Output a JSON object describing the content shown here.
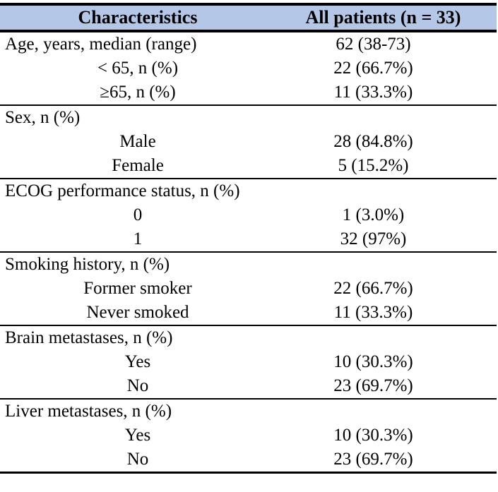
{
  "page": {
    "background_color": "#ffffff",
    "text_color": "#000000",
    "rule_color": "#000000"
  },
  "table": {
    "header_bg": "#b4c7e7",
    "header": {
      "characteristics": "Characteristics",
      "all_patients": "All patients (n = 33)"
    },
    "sections": [
      {
        "rows": [
          {
            "label": "Age, years, median (range)",
            "value": "62 (38-73)",
            "indent": false
          },
          {
            "label": "< 65, n (%)",
            "value": "22 (66.7%)",
            "indent": true
          },
          {
            "label": "≥65, n (%)",
            "value": "11 (33.3%)",
            "indent": true
          }
        ]
      },
      {
        "rows": [
          {
            "label": "Sex, n (%)",
            "value": "",
            "indent": false
          },
          {
            "label": "Male",
            "value": "28 (84.8%)",
            "indent": true
          },
          {
            "label": "Female",
            "value": "5 (15.2%)",
            "indent": true
          }
        ]
      },
      {
        "rows": [
          {
            "label": "ECOG performance status, n (%)",
            "value": "",
            "indent": false
          },
          {
            "label": "0",
            "value": "1 (3.0%)",
            "indent": true
          },
          {
            "label": "1",
            "value": "32 (97%)",
            "indent": true
          }
        ]
      },
      {
        "rows": [
          {
            "label": "Smoking history, n (%)",
            "value": "",
            "indent": false
          },
          {
            "label": "Former smoker",
            "value": "22 (66.7%)",
            "indent": true
          },
          {
            "label": "Never smoked",
            "value": "11 (33.3%)",
            "indent": true
          }
        ]
      },
      {
        "rows": [
          {
            "label": "Brain metastases, n (%)",
            "value": "",
            "indent": false
          },
          {
            "label": "Yes",
            "value": "10 (30.3%)",
            "indent": true
          },
          {
            "label": "No",
            "value": "23 (69.7%)",
            "indent": true
          }
        ]
      },
      {
        "rows": [
          {
            "label": "Liver metastases, n (%)",
            "value": "",
            "indent": false
          },
          {
            "label": "Yes",
            "value": "10 (30.3%)",
            "indent": true
          },
          {
            "label": "No",
            "value": "23 (69.7%)",
            "indent": true
          }
        ]
      }
    ]
  }
}
